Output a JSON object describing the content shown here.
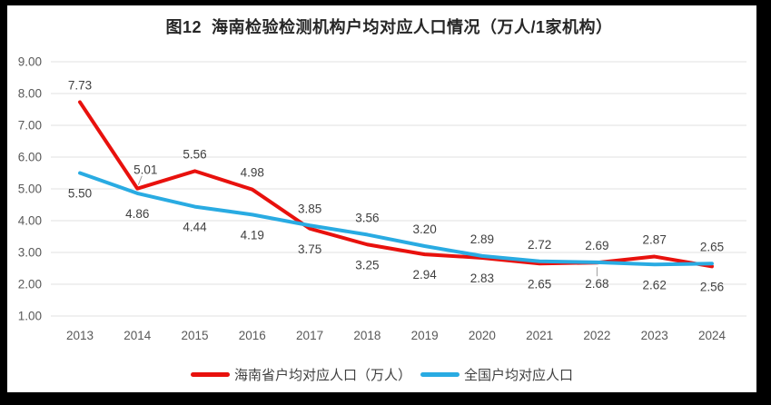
{
  "title": "图12  海南检验检测机构户均对应人口情况（万人/1家机构）",
  "chart_data": {
    "type": "line",
    "title": "图12  海南检验检测机构户均对应人口情况（万人/1家机构）",
    "categories": [
      "2013",
      "2014",
      "2015",
      "2016",
      "2017",
      "2018",
      "2019",
      "2020",
      "2021",
      "2022",
      "2023",
      "2024"
    ],
    "series": [
      {
        "name": "海南省户均对应人口（万人）",
        "color": "#e8110d",
        "values": [
          7.73,
          5.01,
          5.56,
          4.98,
          3.75,
          3.25,
          2.94,
          2.83,
          2.65,
          2.68,
          2.87,
          2.56
        ]
      },
      {
        "name": "全国户均对应人口",
        "color": "#29abe2",
        "values": [
          5.5,
          4.86,
          4.44,
          4.19,
          3.85,
          3.56,
          3.2,
          2.89,
          2.72,
          2.69,
          2.62,
          2.65
        ]
      }
    ],
    "xlabel": "",
    "ylabel": "",
    "ylim": [
      1.0,
      9.0
    ],
    "y_tick_step": 1.0,
    "y_tick_labels": [
      "1.00",
      "2.00",
      "3.00",
      "4.00",
      "5.00",
      "6.00",
      "7.00",
      "8.00",
      "9.00"
    ],
    "grid": "horizontal-only",
    "legend_position": "bottom",
    "data_labels": "all points, two decimals"
  },
  "colors": {
    "frame": "#000000",
    "background": "#ffffff",
    "grid": "#e0e0e0",
    "axis_text": "#595959",
    "data_label_text": "#404040",
    "title_text": "#262626",
    "leader_line": "#a0a0a0"
  }
}
